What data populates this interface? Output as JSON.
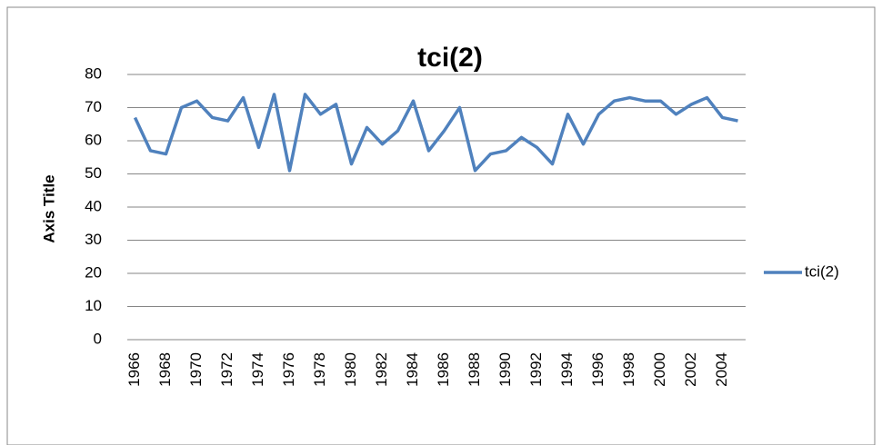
{
  "chart_data": {
    "type": "line",
    "title": "tci(2)",
    "y_label": "Axis Title",
    "categories": [
      "1966",
      null,
      "1968",
      null,
      "1970",
      null,
      "1972",
      null,
      "1974",
      null,
      "1976",
      null,
      "1978",
      null,
      "1980",
      null,
      "1982",
      null,
      "1984",
      null,
      "1986",
      null,
      "1988",
      null,
      "1990",
      null,
      "1992",
      null,
      "1994",
      null,
      "1996",
      null,
      "1998",
      null,
      "2000",
      null,
      "2002",
      null,
      "2004",
      null
    ],
    "series": [
      {
        "name": "tci(2)",
        "color": "#4f81bd",
        "values": [
          67,
          57,
          56,
          70,
          72,
          67,
          66,
          73,
          58,
          74,
          51,
          74,
          68,
          71,
          53,
          64,
          59,
          63,
          72,
          57,
          63,
          70,
          51,
          56,
          57,
          61,
          58,
          53,
          68,
          59,
          68,
          72,
          73,
          72,
          72,
          68,
          71,
          73,
          67,
          66
        ]
      }
    ],
    "ylim": [
      0,
      80
    ],
    "yticks": [
      0,
      10,
      20,
      30,
      40,
      50,
      60,
      70,
      80
    ],
    "grid": true,
    "legend": "right"
  }
}
